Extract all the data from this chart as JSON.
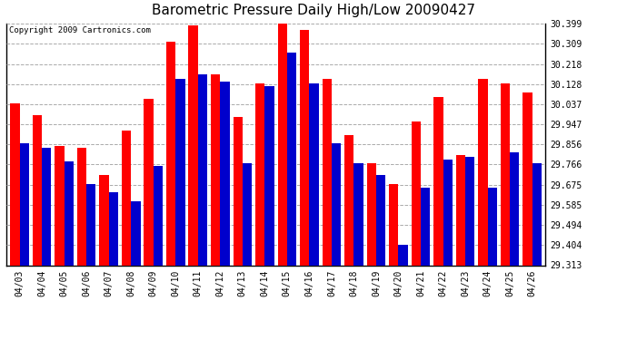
{
  "title": "Barometric Pressure Daily High/Low 20090427",
  "copyright": "Copyright 2009 Cartronics.com",
  "dates": [
    "04/03",
    "04/04",
    "04/05",
    "04/06",
    "04/07",
    "04/08",
    "04/09",
    "04/10",
    "04/11",
    "04/12",
    "04/13",
    "04/14",
    "04/15",
    "04/16",
    "04/17",
    "04/18",
    "04/19",
    "04/20",
    "04/21",
    "04/22",
    "04/23",
    "04/24",
    "04/25",
    "04/26"
  ],
  "highs": [
    30.04,
    29.99,
    29.85,
    29.84,
    29.72,
    29.92,
    30.06,
    30.32,
    30.39,
    30.17,
    29.98,
    30.13,
    30.399,
    30.37,
    30.15,
    29.9,
    29.77,
    29.68,
    29.96,
    30.07,
    29.81,
    30.15,
    30.13,
    30.09
  ],
  "lows": [
    29.86,
    29.84,
    29.78,
    29.68,
    29.64,
    29.6,
    29.76,
    30.15,
    30.17,
    30.14,
    29.77,
    30.12,
    30.27,
    30.13,
    29.86,
    29.77,
    29.72,
    29.404,
    29.66,
    29.79,
    29.8,
    29.66,
    29.82,
    29.77
  ],
  "ylim_min": 29.313,
  "ylim_max": 30.399,
  "yticks": [
    29.313,
    29.404,
    29.494,
    29.585,
    29.675,
    29.766,
    29.856,
    29.947,
    30.037,
    30.128,
    30.218,
    30.309,
    30.399
  ],
  "bar_width": 0.42,
  "high_color": "#ff0000",
  "low_color": "#0000cc",
  "bg_color": "#ffffff",
  "grid_color": "#aaaaaa",
  "title_fontsize": 11,
  "tick_fontsize": 7,
  "copyright_fontsize": 6.5
}
